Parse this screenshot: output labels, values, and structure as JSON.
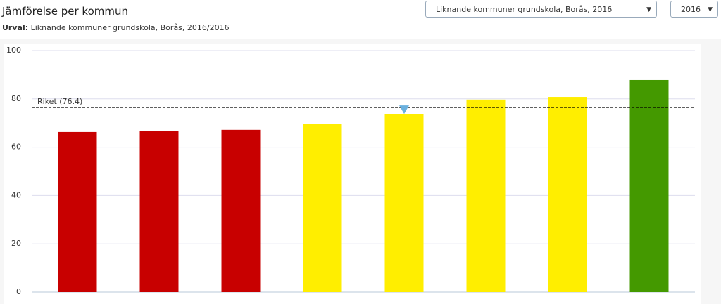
{
  "header": {
    "title": "Jämförelse per kommun",
    "subtitle_label": "Urval:",
    "subtitle": "Liknande kommuner grundskola, Borås, 2016/2016"
  },
  "controls": {
    "selection": "Liknande kommuner grundskola, Borås, 2016",
    "year": "2016"
  },
  "chart_data": {
    "type": "bar",
    "categories": [
      null,
      null,
      null,
      null,
      null,
      null,
      null,
      null
    ],
    "values": [
      66.3,
      66.6,
      67.2,
      69.5,
      73.8,
      79.7,
      80.8,
      87.8
    ],
    "colors": [
      "#c80000",
      "#c80000",
      "#c80000",
      "#ffee00",
      "#ffee00",
      "#ffee00",
      "#ffee00",
      "#449900"
    ],
    "ylim": [
      0,
      100
    ],
    "yticks": [
      0,
      20,
      40,
      60,
      80,
      100
    ],
    "grid": true,
    "reference_line": {
      "label": "Riket (76.4)",
      "value": 76.4
    },
    "highlight_index": 4,
    "highlight_color": "#6ab0de"
  }
}
